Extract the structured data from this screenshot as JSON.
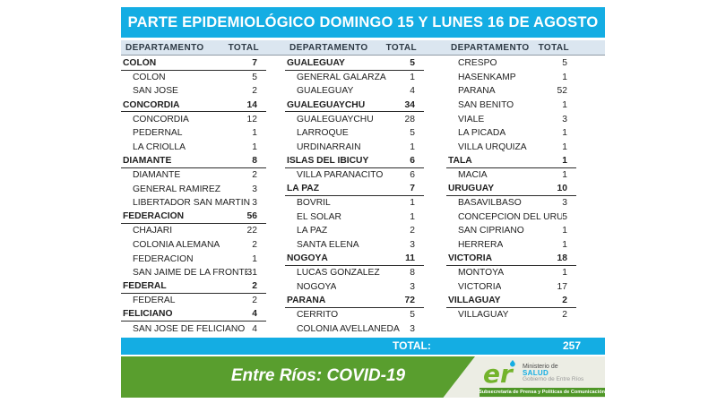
{
  "title": "PARTE EPIDEMIOLÓGICO DOMINGO 15 Y LUNES 16 DE AGOSTO",
  "colors": {
    "cyan": "#14ade3",
    "headerbg": "#dbe6f0",
    "ink": "#1f1f1f",
    "green": "#599e2e",
    "stripgreen": "#4f9727",
    "footerbg": "#ecede4",
    "logogreen": "#73b32c"
  },
  "table": {
    "column_headers": {
      "department": "DEPARTAMENTO",
      "total": "TOTAL"
    },
    "columns": [
      {
        "rows": [
          {
            "type": "group",
            "label": "COLÓN",
            "value": "7"
          },
          {
            "type": "sub",
            "label": "COLON",
            "value": "5"
          },
          {
            "type": "sub",
            "label": "SAN JOSE",
            "value": "2"
          },
          {
            "type": "group",
            "label": "CONCORDIA",
            "value": "14"
          },
          {
            "type": "sub",
            "label": "CONCORDIA",
            "value": "12"
          },
          {
            "type": "sub",
            "label": "PEDERNAL",
            "value": "1"
          },
          {
            "type": "sub",
            "label": "LA CRIOLLA",
            "value": "1"
          },
          {
            "type": "group",
            "label": "DIAMANTE",
            "value": "8"
          },
          {
            "type": "sub",
            "label": "DIAMANTE",
            "value": "2"
          },
          {
            "type": "sub",
            "label": "GENERAL RAMIREZ",
            "value": "3"
          },
          {
            "type": "sub",
            "label": "LIBERTADOR SAN MARTIN",
            "value": "3"
          },
          {
            "type": "group",
            "label": "FEDERACIÓN",
            "value": "56"
          },
          {
            "type": "sub",
            "label": "CHAJARI",
            "value": "22"
          },
          {
            "type": "sub",
            "label": "COLONIA ALEMANA",
            "value": "2"
          },
          {
            "type": "sub",
            "label": "FEDERACION",
            "value": "1"
          },
          {
            "type": "sub",
            "label": "SAN JAIME DE LA FRONTERA",
            "value": "31"
          },
          {
            "type": "group",
            "label": "FEDERAL",
            "value": "2"
          },
          {
            "type": "sub",
            "label": "FEDERAL",
            "value": "2"
          },
          {
            "type": "group",
            "label": "FELICIANO",
            "value": "4"
          },
          {
            "type": "sub",
            "label": "SAN JOSE DE FELICIANO",
            "value": "4"
          }
        ]
      },
      {
        "rows": [
          {
            "type": "group",
            "label": "GUALEGUAY",
            "value": "5"
          },
          {
            "type": "sub",
            "label": "GENERAL GALARZA",
            "value": "1"
          },
          {
            "type": "sub",
            "label": "GUALEGUAY",
            "value": "4"
          },
          {
            "type": "group",
            "label": "GUALEGUAYCHÚ",
            "value": "34"
          },
          {
            "type": "sub",
            "label": "GUALEGUAYCHU",
            "value": "28"
          },
          {
            "type": "sub",
            "label": "LARROQUE",
            "value": "5"
          },
          {
            "type": "sub",
            "label": "URDINARRAIN",
            "value": "1"
          },
          {
            "type": "group",
            "label": "ISLAS DEL IBICUY",
            "value": "6"
          },
          {
            "type": "sub",
            "label": "VILLA PARANACITO",
            "value": "6"
          },
          {
            "type": "group",
            "label": "LA PAZ",
            "value": "7"
          },
          {
            "type": "sub",
            "label": "BOVRIL",
            "value": "1"
          },
          {
            "type": "sub",
            "label": "EL SOLAR",
            "value": "1"
          },
          {
            "type": "sub",
            "label": "LA PAZ",
            "value": "2"
          },
          {
            "type": "sub",
            "label": "SANTA ELENA",
            "value": "3"
          },
          {
            "type": "group",
            "label": "NOGOYÁ",
            "value": "11"
          },
          {
            "type": "sub",
            "label": "LUCAS GONZALEZ",
            "value": "8"
          },
          {
            "type": "sub",
            "label": "NOGOYA",
            "value": "3"
          },
          {
            "type": "group",
            "label": "PARANÁ",
            "value": "72"
          },
          {
            "type": "sub",
            "label": "CERRITO",
            "value": "5"
          },
          {
            "type": "sub",
            "label": "COLONIA AVELLANEDA",
            "value": "3"
          }
        ]
      },
      {
        "rows": [
          {
            "type": "sub",
            "label": "CRESPO",
            "value": "5"
          },
          {
            "type": "sub",
            "label": "HASENKAMP",
            "value": "1"
          },
          {
            "type": "sub",
            "label": "PARANA",
            "value": "52"
          },
          {
            "type": "sub",
            "label": "SAN BENITO",
            "value": "1"
          },
          {
            "type": "sub",
            "label": "VIALE",
            "value": "3"
          },
          {
            "type": "sub",
            "label": "LA PICADA",
            "value": "1"
          },
          {
            "type": "sub",
            "label": "VILLA URQUIZA",
            "value": "1"
          },
          {
            "type": "group",
            "label": "TALA",
            "value": "1"
          },
          {
            "type": "sub",
            "label": "MACIA",
            "value": "1"
          },
          {
            "type": "group",
            "label": "URUGUAY",
            "value": "10"
          },
          {
            "type": "sub",
            "label": "BASAVILBASO",
            "value": "3"
          },
          {
            "type": "sub",
            "label": "CONCEPCION DEL URUGUAY",
            "value": "5"
          },
          {
            "type": "sub",
            "label": "SAN CIPRIANO",
            "value": "1"
          },
          {
            "type": "sub",
            "label": "HERRERA",
            "value": "1"
          },
          {
            "type": "group",
            "label": "VICTORIA",
            "value": "18"
          },
          {
            "type": "sub",
            "label": "MONTOYA",
            "value": "1"
          },
          {
            "type": "sub",
            "label": "VICTORIA",
            "value": "17"
          },
          {
            "type": "group",
            "label": "VILLAGUAY",
            "value": "2"
          },
          {
            "type": "sub",
            "label": "VILLAGUAY",
            "value": "2"
          }
        ]
      }
    ]
  },
  "grand_total": {
    "label": "TOTAL:",
    "value": "257"
  },
  "footer": {
    "banner_title": "Entre Ríos: COVID-19",
    "logo": {
      "monogram": "er",
      "line1": "Ministerio de",
      "line2": "SALUD",
      "line3": "Gobierno de Entre Ríos"
    },
    "press_strip": "Subsecretaría de Prensa y Políticas de Comunicación"
  }
}
